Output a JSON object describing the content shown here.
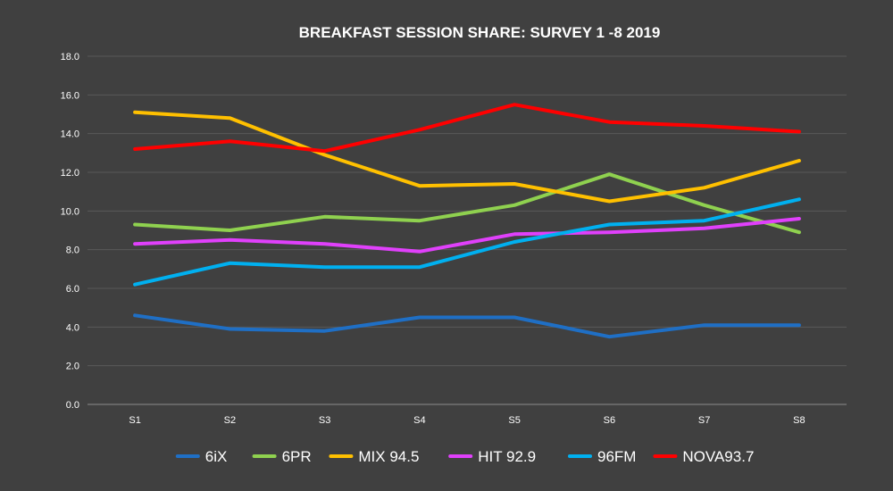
{
  "chart_data": {
    "type": "line",
    "title": "BREAKFAST SESSION SHARE: SURVEY 1 -8 2019",
    "xlabel": "",
    "ylabel": "",
    "categories": [
      "S1",
      "S2",
      "S3",
      "S4",
      "S5",
      "S6",
      "S7",
      "S8"
    ],
    "ylim": [
      0,
      18
    ],
    "yticks": [
      "0.0",
      "2.0",
      "4.0",
      "6.0",
      "8.0",
      "10.0",
      "12.0",
      "14.0",
      "16.0",
      "18.0"
    ],
    "grid": true,
    "legend_position": "bottom",
    "series": [
      {
        "name": "6iX",
        "color": "#1f6fc5",
        "values": [
          4.6,
          3.9,
          3.8,
          4.5,
          4.5,
          3.5,
          4.1,
          4.1
        ]
      },
      {
        "name": "6PR",
        "color": "#8fd14f",
        "values": [
          9.3,
          9.0,
          9.7,
          9.5,
          10.3,
          11.9,
          10.3,
          8.9
        ]
      },
      {
        "name": "MIX 94.5",
        "color": "#ffc000",
        "values": [
          15.1,
          14.8,
          12.9,
          11.3,
          11.4,
          10.5,
          11.2,
          12.6
        ]
      },
      {
        "name": "HIT 92.9",
        "color": "#e040fb",
        "values": [
          8.3,
          8.5,
          8.3,
          7.9,
          8.8,
          8.9,
          9.1,
          9.6
        ]
      },
      {
        "name": "96FM",
        "color": "#00b0f0",
        "values": [
          6.2,
          7.3,
          7.1,
          7.1,
          8.4,
          9.3,
          9.5,
          10.6
        ]
      },
      {
        "name": "NOVA93.7",
        "color": "#ff0000",
        "values": [
          13.2,
          13.6,
          13.1,
          14.2,
          15.5,
          14.6,
          14.4,
          14.1
        ]
      }
    ]
  }
}
